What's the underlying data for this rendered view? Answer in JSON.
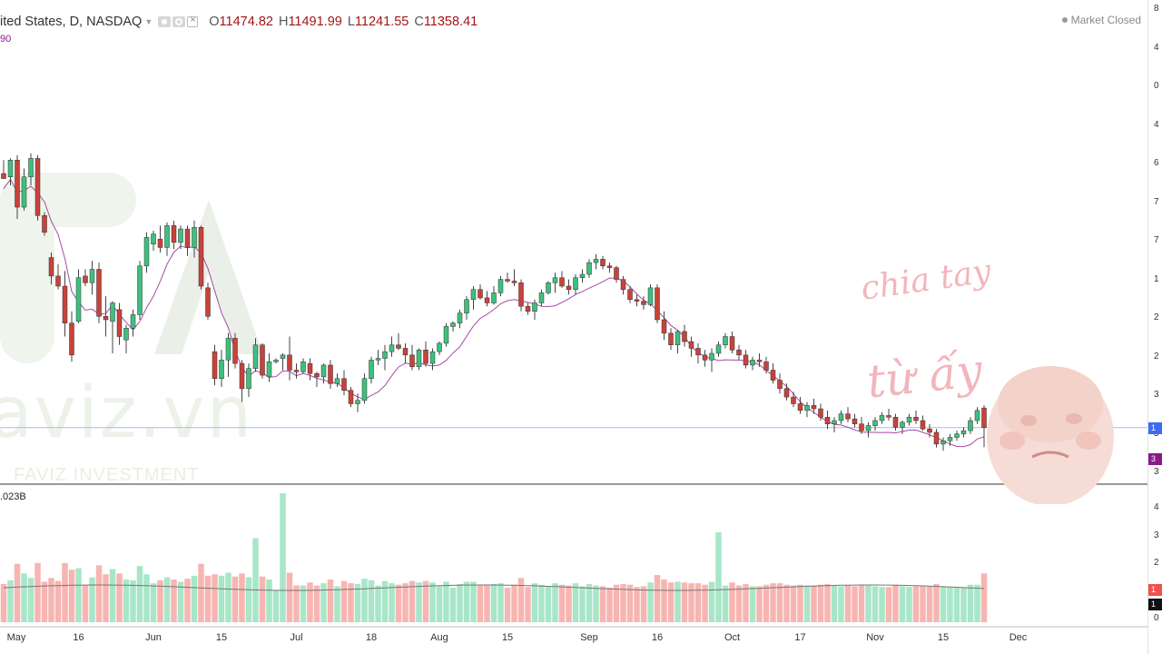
{
  "header": {
    "symbol": "ited States, D, NASDAQ",
    "open_key": "O",
    "open": "11474.82",
    "high_key": "H",
    "high": "11491.99",
    "low_key": "L",
    "low": "11241.55",
    "close_key": "C",
    "close": "11358.41",
    "sub_value": "90",
    "volume_value": ".023B",
    "market_status": "Market Closed"
  },
  "watermark": {
    "brand": "aviz.vn",
    "company": "FAVIZ INVESTMENT"
  },
  "overlay": {
    "caption_line1": "chia tay",
    "caption_line2": "từ ấy"
  },
  "axis": {
    "x_labels": [
      {
        "label": "May",
        "index": 0
      },
      {
        "label": "16",
        "index": 11
      },
      {
        "label": "Jun",
        "index": 22
      },
      {
        "label": "15",
        "index": 32
      },
      {
        "label": "Jul",
        "index": 43
      },
      {
        "label": "18",
        "index": 54
      },
      {
        "label": "Aug",
        "index": 64
      },
      {
        "label": "15",
        "index": 74
      },
      {
        "label": "Sep",
        "index": 86
      },
      {
        "label": "16",
        "index": 96
      },
      {
        "label": "Oct",
        "index": 107
      },
      {
        "label": "17",
        "index": 117
      },
      {
        "label": "Nov",
        "index": 128
      },
      {
        "label": "15",
        "index": 138
      },
      {
        "label": "Dec",
        "index": 149
      }
    ],
    "price_ticks": [
      "8",
      "4",
      "0",
      "4",
      "6",
      "7",
      "7",
      "1",
      "2",
      "2",
      "3",
      "3",
      "3"
    ],
    "volume_ticks": [
      "4",
      "3",
      "2",
      "1",
      "0"
    ],
    "last_price_badge": "1",
    "indicator_badge": "3",
    "volume_badge_red": "1",
    "volume_badge_black": "1"
  },
  "colors": {
    "up": "#26a69a",
    "up_fill": "#3fbf7f",
    "down": "#ef5350",
    "down_fill": "#c9423a",
    "vol_up": "#a8e6c8",
    "vol_down": "#f7b5b2",
    "indicator": "#a64ca6",
    "last_price_line": "#aab8f0",
    "badge_blue": "#3d6cf0",
    "badge_purple": "#8b1a8b"
  },
  "chart_data": {
    "type": "candlestick",
    "title": "",
    "series": [
      {
        "name": "",
        "ohlc": [
          [
            12870,
            12950,
            12840,
            12840
          ],
          [
            12850,
            12960,
            12800,
            12950
          ],
          [
            12950,
            12980,
            12600,
            12670
          ],
          [
            12670,
            12900,
            12650,
            12850
          ],
          [
            12850,
            12990,
            12800,
            12960
          ],
          [
            12960,
            12980,
            12590,
            12620
          ],
          [
            12620,
            12640,
            12500,
            12520
          ],
          [
            12370,
            12400,
            12210,
            12260
          ],
          [
            12260,
            12330,
            12180,
            12200
          ],
          [
            12200,
            12290,
            11900,
            11980
          ],
          [
            11980,
            12050,
            11750,
            11790
          ],
          [
            11990,
            12300,
            11980,
            12250
          ],
          [
            12260,
            12300,
            12200,
            12220
          ],
          [
            12220,
            12350,
            12150,
            12300
          ],
          [
            12300,
            12340,
            11980,
            12020
          ],
          [
            12020,
            12140,
            11900,
            12000
          ],
          [
            11990,
            12110,
            11800,
            12100
          ],
          [
            12060,
            12100,
            11850,
            11900
          ],
          [
            11880,
            11970,
            11800,
            11950
          ],
          [
            11950,
            12060,
            11900,
            12030
          ],
          [
            12030,
            12350,
            12000,
            12320
          ],
          [
            12320,
            12520,
            12280,
            12490
          ],
          [
            12450,
            12530,
            12410,
            12510
          ],
          [
            12480,
            12560,
            12400,
            12430
          ],
          [
            12430,
            12580,
            12380,
            12560
          ],
          [
            12560,
            12590,
            12420,
            12460
          ],
          [
            12460,
            12560,
            12420,
            12540
          ],
          [
            12540,
            12560,
            12380,
            12430
          ],
          [
            12430,
            12590,
            12370,
            12550
          ],
          [
            12550,
            12560,
            12180,
            12200
          ],
          [
            12190,
            12220,
            12000,
            12020
          ],
          [
            11810,
            11850,
            11610,
            11650
          ],
          [
            11650,
            11820,
            11600,
            11760
          ],
          [
            11760,
            11920,
            11660,
            11890
          ],
          [
            11890,
            11920,
            11710,
            11740
          ],
          [
            11740,
            11760,
            11510,
            11590
          ],
          [
            11590,
            11740,
            11540,
            11710
          ],
          [
            11710,
            11890,
            11690,
            11850
          ],
          [
            11850,
            11860,
            11650,
            11670
          ],
          [
            11660,
            11800,
            11630,
            11750
          ],
          [
            11750,
            11770,
            11740,
            11760
          ],
          [
            11770,
            11800,
            11700,
            11790
          ],
          [
            11790,
            11900,
            11640,
            11700
          ],
          [
            11700,
            11740,
            11650,
            11690
          ],
          [
            11690,
            11770,
            11680,
            11750
          ],
          [
            11740,
            11770,
            11640,
            11680
          ],
          [
            11680,
            11690,
            11600,
            11660
          ],
          [
            11660,
            11740,
            11620,
            11730
          ],
          [
            11730,
            11760,
            11590,
            11620
          ],
          [
            11620,
            11680,
            11600,
            11650
          ],
          [
            11650,
            11700,
            11550,
            11580
          ],
          [
            11580,
            11600,
            11480,
            11500
          ],
          [
            11500,
            11560,
            11450,
            11520
          ],
          [
            11520,
            11680,
            11500,
            11650
          ],
          [
            11650,
            11780,
            11620,
            11760
          ],
          [
            11760,
            11820,
            11730,
            11770
          ],
          [
            11770,
            11850,
            11700,
            11810
          ],
          [
            11810,
            11900,
            11780,
            11850
          ],
          [
            11850,
            11920,
            11820,
            11830
          ],
          [
            11830,
            11860,
            11740,
            11790
          ],
          [
            11790,
            11850,
            11700,
            11720
          ],
          [
            11720,
            11830,
            11700,
            11820
          ],
          [
            11820,
            11870,
            11720,
            11740
          ],
          [
            11740,
            11830,
            11700,
            11810
          ],
          [
            11810,
            11870,
            11790,
            11860
          ],
          [
            11860,
            11980,
            11840,
            11960
          ],
          [
            11960,
            11990,
            11930,
            11980
          ],
          [
            11980,
            12060,
            11950,
            12040
          ],
          [
            12040,
            12140,
            12000,
            12120
          ],
          [
            12120,
            12200,
            12060,
            12180
          ],
          [
            12180,
            12210,
            12120,
            12130
          ],
          [
            12130,
            12170,
            12080,
            12100
          ],
          [
            12100,
            12200,
            12090,
            12160
          ],
          [
            12160,
            12260,
            12140,
            12240
          ],
          [
            12240,
            12280,
            12220,
            12230
          ],
          [
            12230,
            12300,
            12200,
            12220
          ],
          [
            12220,
            12240,
            12050,
            12080
          ],
          [
            12080,
            12100,
            12030,
            12050
          ],
          [
            12050,
            12120,
            12000,
            12100
          ],
          [
            12100,
            12180,
            12080,
            12160
          ],
          [
            12160,
            12230,
            12150,
            12220
          ],
          [
            12220,
            12280,
            12160,
            12250
          ],
          [
            12250,
            12290,
            12190,
            12200
          ],
          [
            12200,
            12240,
            12150,
            12180
          ],
          [
            12180,
            12270,
            12150,
            12250
          ],
          [
            12250,
            12300,
            12220,
            12270
          ],
          [
            12270,
            12360,
            12250,
            12340
          ],
          [
            12340,
            12390,
            12300,
            12360
          ],
          [
            12360,
            12380,
            12300,
            12320
          ],
          [
            12320,
            12340,
            12280,
            12310
          ],
          [
            12310,
            12320,
            12220,
            12240
          ],
          [
            12240,
            12260,
            12150,
            12180
          ],
          [
            12180,
            12200,
            12100,
            12120
          ],
          [
            12120,
            12150,
            12080,
            12110
          ],
          [
            12110,
            12140,
            12060,
            12090
          ],
          [
            12090,
            12210,
            12080,
            12190
          ],
          [
            12190,
            12210,
            11980,
            12000
          ],
          [
            12000,
            12050,
            11880,
            11920
          ],
          [
            11920,
            11950,
            11820,
            11850
          ],
          [
            11850,
            11940,
            11800,
            11930
          ],
          [
            11930,
            11970,
            11840,
            11870
          ],
          [
            11870,
            11900,
            11780,
            11830
          ],
          [
            11830,
            11860,
            11740,
            11790
          ],
          [
            11790,
            11820,
            11720,
            11760
          ],
          [
            11760,
            11830,
            11690,
            11800
          ],
          [
            11800,
            11870,
            11780,
            11850
          ],
          [
            11850,
            11920,
            11830,
            11900
          ],
          [
            11900,
            11930,
            11800,
            11820
          ],
          [
            11820,
            11850,
            11760,
            11790
          ],
          [
            11790,
            11820,
            11710,
            11730
          ],
          [
            11730,
            11780,
            11700,
            11760
          ],
          [
            11760,
            11800,
            11720,
            11750
          ],
          [
            11750,
            11780,
            11680,
            11700
          ],
          [
            11700,
            11740,
            11620,
            11640
          ],
          [
            11640,
            11680,
            11560,
            11590
          ],
          [
            11590,
            11620,
            11520,
            11540
          ],
          [
            11540,
            11570,
            11480,
            11500
          ],
          [
            11500,
            11540,
            11440,
            11460
          ],
          [
            11460,
            11510,
            11420,
            11490
          ],
          [
            11490,
            11530,
            11440,
            11470
          ],
          [
            11470,
            11500,
            11400,
            11420
          ],
          [
            11420,
            11460,
            11350,
            11380
          ],
          [
            11380,
            11420,
            11330,
            11400
          ],
          [
            11400,
            11460,
            11380,
            11440
          ],
          [
            11440,
            11480,
            11390,
            11410
          ],
          [
            11410,
            11440,
            11360,
            11380
          ],
          [
            11380,
            11420,
            11320,
            11340
          ],
          [
            11340,
            11390,
            11300,
            11370
          ],
          [
            11370,
            11420,
            11340,
            11400
          ],
          [
            11400,
            11450,
            11380,
            11430
          ],
          [
            11430,
            11470,
            11400,
            11420
          ],
          [
            11420,
            11440,
            11340,
            11360
          ],
          [
            11360,
            11400,
            11320,
            11390
          ],
          [
            11390,
            11440,
            11370,
            11420
          ],
          [
            11420,
            11460,
            11380,
            11400
          ],
          [
            11400,
            11430,
            11340,
            11350
          ],
          [
            11350,
            11380,
            11300,
            11330
          ],
          [
            11330,
            11350,
            11240,
            11260
          ],
          [
            11260,
            11300,
            11220,
            11280
          ],
          [
            11280,
            11320,
            11250,
            11300
          ],
          [
            11300,
            11340,
            11280,
            11320
          ],
          [
            11320,
            11360,
            11300,
            11340
          ],
          [
            11340,
            11420,
            11320,
            11400
          ],
          [
            11400,
            11480,
            11380,
            11460
          ],
          [
            11475,
            11492,
            11242,
            11358
          ]
        ]
      }
    ]
  }
}
